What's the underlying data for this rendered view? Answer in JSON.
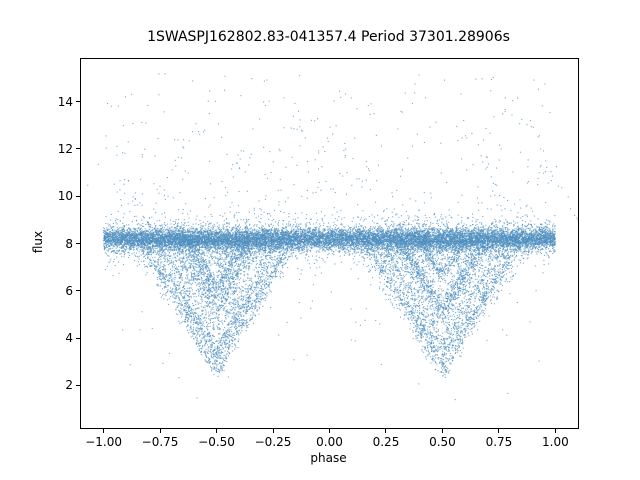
{
  "chart_data": {
    "type": "scatter",
    "title": "1SWASPJ162802.83-041357.4 Period 37301.28906s",
    "xlabel": "phase",
    "ylabel": "flux",
    "xlim": [
      -1.1,
      1.1
    ],
    "ylim": [
      0.2,
      15.8
    ],
    "xticks": [
      -1.0,
      -0.75,
      -0.5,
      -0.25,
      0.0,
      0.25,
      0.5,
      0.75,
      1.0
    ],
    "xtick_labels": [
      "−1.00",
      "−0.75",
      "−0.50",
      "−0.25",
      "0.00",
      "0.25",
      "0.50",
      "0.75",
      "1.00"
    ],
    "yticks": [
      2,
      4,
      6,
      8,
      10,
      12,
      14
    ],
    "ytick_labels": [
      "2",
      "4",
      "6",
      "8",
      "10",
      "12",
      "14"
    ],
    "grid": false,
    "legend": "none",
    "marker_color": "#4f8fbf",
    "marker_alpha": 0.75,
    "marker_size_px": 1.1,
    "seed": 42,
    "series": [
      {
        "name": "baseline-band",
        "description": "dense horizontal band of flux across all phases",
        "phase_range": [
          -1.0,
          1.0
        ],
        "flux_mean": 8.2,
        "flux_sigma_core": 0.22,
        "flux_sigma_tail": 0.5,
        "tail_fraction": 0.15,
        "n": 14000
      },
      {
        "name": "eclipse-dips",
        "description": "V-shaped eclipse streaks dropping from the band",
        "centers": [
          -0.5,
          0.5
        ],
        "depth_max": 5.8,
        "min_flux": 2.35,
        "max_half_width": 0.38,
        "n_tracks": 36,
        "points_per_track": 70,
        "n_diffuse": 1500
      },
      {
        "name": "upper-trails",
        "description": "sparse streaks rising above the band",
        "phase_range": [
          -1.0,
          1.0
        ],
        "n_tracks": 8,
        "points_per_track": 15,
        "height_max": 6.5
      },
      {
        "name": "high-outliers",
        "description": "sparse scatter above the band",
        "flux_range": [
          8.8,
          15.2
        ],
        "n": 420
      },
      {
        "name": "low-outliers",
        "description": "sparse scatter below the band outside eclipses",
        "flux_range": [
          1.3,
          7.7
        ],
        "n": 150
      }
    ]
  }
}
